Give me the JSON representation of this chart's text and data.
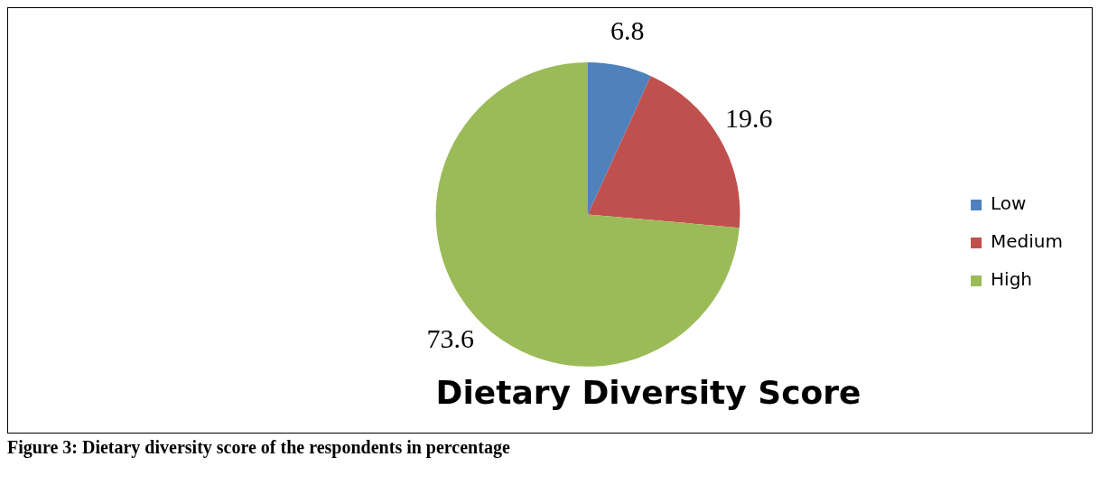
{
  "chart_data": {
    "type": "pie",
    "title": "Dietary Diversity Score",
    "categories": [
      "Low",
      "Medium",
      "High"
    ],
    "values": [
      6.8,
      19.6,
      73.6
    ],
    "colors": [
      "#4f81bd",
      "#c0504d",
      "#9bbb59"
    ],
    "data_labels": true,
    "legend": "right",
    "annotations": [
      "Figure 3: Dietary diversity score of the respondents in percentage"
    ]
  }
}
